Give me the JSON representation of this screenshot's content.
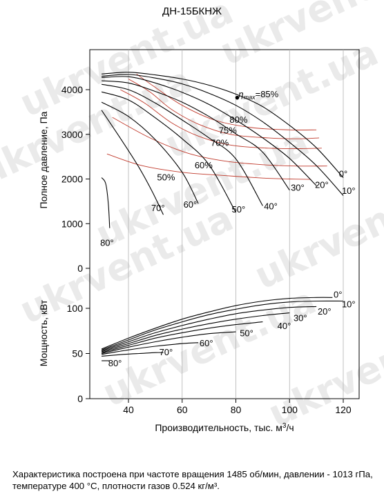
{
  "title": "ДН-15БКНЖ",
  "caption": "Характеристика построена при частоте вращения 1485 об/мин, давлении - 1013 гПа, температуре 400 °С, плотности газов 0.524 кг/м³.",
  "watermark": "ukrvent.ua",
  "colors": {
    "curve": "#000000",
    "efficiency": "#c0392b",
    "grid": "#b0b0b0"
  },
  "chart_data": [
    {
      "type": "line",
      "title": "ДН-15БКНЖ",
      "xlabel": "Производительность, тыс. м3/ч",
      "ylabel": "Полное давление, Па",
      "xlim": [
        28,
        124
      ],
      "ylim": [
        0,
        4900
      ],
      "xticks": [
        40,
        60,
        80,
        100,
        120
      ],
      "yticks": [
        0,
        1000,
        2000,
        3000,
        4000
      ],
      "grid": "x-only",
      "series": [
        {
          "name": "0°",
          "x": [
            30,
            40,
            50,
            60,
            70,
            80,
            90,
            100,
            110,
            120
          ],
          "y": [
            4350,
            4390,
            4330,
            4240,
            4100,
            3900,
            3620,
            3200,
            2700,
            2030
          ]
        },
        {
          "name": "10°",
          "x": [
            30,
            40,
            50,
            60,
            70,
            80,
            90,
            100,
            110,
            120
          ],
          "y": [
            4300,
            4340,
            4260,
            4130,
            3920,
            3650,
            3280,
            2820,
            2300,
            1630
          ]
        },
        {
          "name": "20°",
          "x": [
            30,
            40,
            50,
            60,
            70,
            80,
            90,
            100,
            110
          ],
          "y": [
            4270,
            4290,
            4150,
            3940,
            3670,
            3320,
            2920,
            2460,
            1850
          ]
        },
        {
          "name": "30°",
          "x": [
            30,
            40,
            50,
            60,
            70,
            80,
            90,
            100
          ],
          "y": [
            4200,
            4150,
            3960,
            3720,
            3400,
            3010,
            2600,
            1750
          ]
        },
        {
          "name": "40°",
          "x": [
            30,
            40,
            50,
            60,
            70,
            80,
            90
          ],
          "y": [
            4120,
            4000,
            3700,
            3320,
            2920,
            2450,
            1400
          ]
        },
        {
          "name": "50°",
          "x": [
            30,
            40,
            50,
            60,
            70,
            80
          ],
          "y": [
            3950,
            3770,
            3370,
            2900,
            2320,
            1250
          ]
        },
        {
          "name": "60°",
          "x": [
            30,
            40,
            50,
            60,
            66
          ],
          "y": [
            3720,
            3400,
            2880,
            2150,
            1450
          ]
        },
        {
          "name": "70°",
          "x": [
            30,
            38,
            44,
            49,
            53
          ],
          "y": [
            3540,
            2820,
            2250,
            1700,
            1200
          ]
        },
        {
          "name": "80°",
          "x": [
            30,
            31.5,
            32.5,
            33
          ],
          "y": [
            2030,
            1900,
            1450,
            900
          ]
        }
      ],
      "efficiency_curves": [
        {
          "label": "50%",
          "x": [
            32,
            45,
            60,
            75,
            90,
            100,
            108
          ],
          "y": [
            2560,
            2300,
            2150,
            2080,
            2020,
            2000,
            1990
          ]
        },
        {
          "label": "60%",
          "x": [
            34,
            48,
            62,
            76,
            90,
            102,
            114
          ],
          "y": [
            3380,
            2920,
            2580,
            2400,
            2320,
            2290,
            2290
          ]
        },
        {
          "label": "70%",
          "x": [
            37,
            46,
            56,
            66,
            78,
            92,
            104,
            112
          ],
          "y": [
            4000,
            3700,
            3260,
            2960,
            2760,
            2690,
            2680,
            2690
          ]
        },
        {
          "label": "75%",
          "x": [
            40,
            48,
            56,
            66,
            78,
            92,
            104,
            111
          ],
          "y": [
            4240,
            3950,
            3560,
            3230,
            3000,
            2920,
            2900,
            2920
          ]
        },
        {
          "label": "80%",
          "x": [
            43,
            50,
            60,
            72,
            86,
            100,
            110
          ],
          "y": [
            4350,
            4050,
            3650,
            3320,
            3150,
            3100,
            3100
          ]
        }
      ],
      "annotations": [
        {
          "text": "ηmax=85%",
          "x": 81,
          "y": 3830
        },
        {
          "text": "80%",
          "x": 81,
          "y": 3260
        },
        {
          "text": "75%",
          "x": 77,
          "y": 3020
        },
        {
          "text": "70%",
          "x": 74,
          "y": 2740
        },
        {
          "text": "60%",
          "x": 68,
          "y": 2240
        },
        {
          "text": "50%",
          "x": 54,
          "y": 1970
        },
        {
          "text": "70°",
          "x": 51,
          "y": 1280
        },
        {
          "text": "60°",
          "x": 63,
          "y": 1360
        },
        {
          "text": "50°",
          "x": 81,
          "y": 1250
        },
        {
          "text": "40°",
          "x": 93,
          "y": 1320
        },
        {
          "text": "30°",
          "x": 103,
          "y": 1740
        },
        {
          "text": "20°",
          "x": 112,
          "y": 1800
        },
        {
          "text": "10°",
          "x": 122,
          "y": 1670
        },
        {
          "text": "0°",
          "x": 120,
          "y": 2050
        },
        {
          "text": "80°",
          "x": 32,
          "y": 500
        }
      ],
      "eta_max_point": {
        "x": 80.5,
        "y": 3820
      }
    },
    {
      "type": "line",
      "xlabel": "Производительность, тыс. м3/ч",
      "ylabel": "Мощность, кВт",
      "xlim": [
        28,
        124
      ],
      "ylim": [
        0,
        145
      ],
      "xticks": [
        40,
        60,
        80,
        100,
        120
      ],
      "yticks": [
        0,
        50,
        100
      ],
      "grid": "x-only",
      "series": [
        {
          "name": "0°",
          "x": [
            30,
            40,
            50,
            60,
            70,
            80,
            90,
            100,
            110,
            116
          ],
          "y": [
            55,
            67,
            78,
            88,
            96,
            103,
            108,
            111,
            112,
            112
          ]
        },
        {
          "name": "10°",
          "x": [
            30,
            40,
            50,
            60,
            70,
            80,
            90,
            100,
            110,
            120
          ],
          "y": [
            54,
            65,
            76,
            85,
            93,
            99,
            104,
            107,
            108,
            108
          ]
        },
        {
          "name": "20°",
          "x": [
            30,
            40,
            50,
            60,
            70,
            80,
            90,
            100,
            110
          ],
          "y": [
            53,
            63,
            73,
            81,
            88,
            94,
            98,
            101,
            102
          ]
        },
        {
          "name": "30°",
          "x": [
            30,
            40,
            50,
            60,
            70,
            80,
            90,
            100
          ],
          "y": [
            52,
            61,
            70,
            77,
            83,
            88,
            92,
            95
          ]
        },
        {
          "name": "40°",
          "x": [
            30,
            40,
            50,
            60,
            70,
            80,
            90
          ],
          "y": [
            51,
            59,
            67,
            73,
            78,
            82,
            85
          ]
        },
        {
          "name": "50°",
          "x": [
            30,
            40,
            50,
            60,
            70,
            80
          ],
          "y": [
            50,
            57,
            63,
            68,
            72,
            74
          ]
        },
        {
          "name": "60°",
          "x": [
            30,
            40,
            50,
            60,
            66
          ],
          "y": [
            49,
            54,
            58,
            61,
            62
          ]
        },
        {
          "name": "70°",
          "x": [
            30,
            38,
            44,
            50,
            53
          ],
          "y": [
            47,
            49,
            50,
            51,
            51
          ]
        },
        {
          "name": "80°",
          "x": [
            30,
            31.5,
            33
          ],
          "y": [
            42,
            42,
            42
          ]
        }
      ],
      "annotations": [
        {
          "text": "0°",
          "x": 118,
          "y": 112
        },
        {
          "text": "10°",
          "x": 122,
          "y": 101
        },
        {
          "text": "20°",
          "x": 113,
          "y": 93
        },
        {
          "text": "30°",
          "x": 104,
          "y": 86
        },
        {
          "text": "40°",
          "x": 98,
          "y": 77
        },
        {
          "text": "50°",
          "x": 84,
          "y": 69
        },
        {
          "text": "60°",
          "x": 69,
          "y": 58
        },
        {
          "text": "70°",
          "x": 54,
          "y": 48
        },
        {
          "text": "80°",
          "x": 35,
          "y": 36
        }
      ]
    }
  ]
}
